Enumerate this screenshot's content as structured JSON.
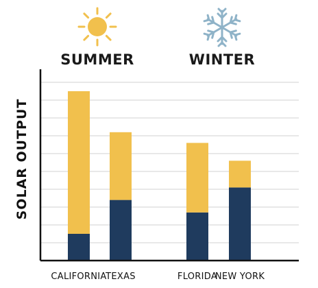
{
  "chart_data": {
    "type": "bar",
    "stacked": true,
    "ylabel": "SOLAR OUTPUT",
    "groups": [
      {
        "label": "SUMMER",
        "icon": "sun-icon",
        "categories": [
          "CALIFORNIA",
          "TEXAS"
        ]
      },
      {
        "label": "WINTER",
        "icon": "snowflake-icon",
        "categories": [
          "FLORIDA",
          "NEW YORK"
        ]
      }
    ],
    "categories": [
      "CALIFORNIA",
      "TEXAS",
      "FLORIDA",
      "NEW YORK"
    ],
    "series": [
      {
        "values": [
          1.5,
          3.4,
          2.7,
          4.1
        ],
        "color": "#1f3b5e"
      },
      {
        "values": [
          8.0,
          3.8,
          3.9,
          1.5
        ],
        "color": "#f1c04d"
      }
    ],
    "ylim": [
      0,
      10
    ],
    "grid": true,
    "legend": "none"
  },
  "icons": {
    "sun": "sun-icon",
    "snowflake": "snowflake-icon"
  },
  "colors": {
    "axis": "#111111",
    "grid": "#d9d9d9",
    "sun": "#f1c04d",
    "snowflake": "#8fb3c8"
  }
}
